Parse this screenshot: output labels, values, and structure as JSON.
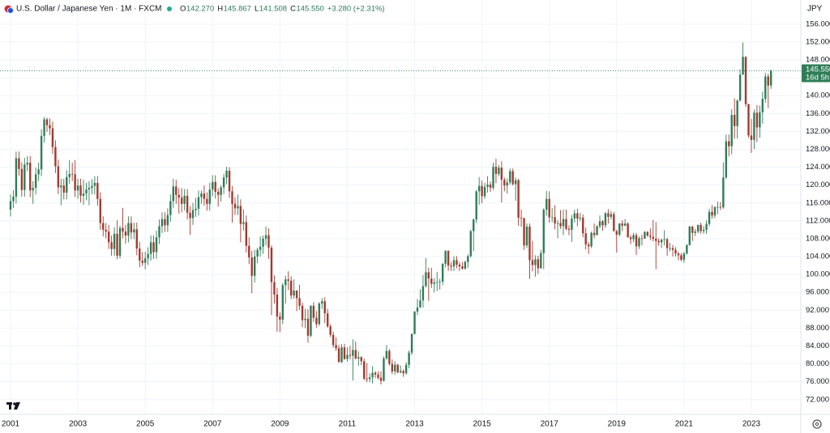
{
  "chart_data": {
    "type": "candlestick",
    "title": "U.S. Dollar / Japanese Yen · 1M · FXCM",
    "readout": [
      {
        "label": "O",
        "value": "142.270"
      },
      {
        "label": "H",
        "value": "145.867"
      },
      {
        "label": "L",
        "value": "141.508"
      },
      {
        "label": "C",
        "value": "145.550"
      }
    ],
    "change": "+3.280 (+2.31%)",
    "currency": "JPY",
    "last_price_label": "145.550",
    "countdown": "16d 5h",
    "up_color": "#2f7d57",
    "down_color": "#a3392e",
    "grid": true,
    "ylim": [
      68.7,
      161.4
    ],
    "yticks": [
      {
        "value": 72,
        "label": "72.000"
      },
      {
        "value": 76,
        "label": "76.000"
      },
      {
        "value": 80,
        "label": "80.000"
      },
      {
        "value": 84,
        "label": "84.000"
      },
      {
        "value": 88,
        "label": "88.000"
      },
      {
        "value": 92,
        "label": "92.000"
      },
      {
        "value": 96,
        "label": "96.000"
      },
      {
        "value": 100,
        "label": "100.000"
      },
      {
        "value": 104,
        "label": "104.000"
      },
      {
        "value": 108,
        "label": "108.000"
      },
      {
        "value": 112,
        "label": "112.000"
      },
      {
        "value": 116,
        "label": "116.000"
      },
      {
        "value": 120,
        "label": "120.000"
      },
      {
        "value": 124,
        "label": "124.000"
      },
      {
        "value": 128,
        "label": "128.000"
      },
      {
        "value": 132,
        "label": "132.000"
      },
      {
        "value": 136,
        "label": "136.000"
      },
      {
        "value": 140,
        "label": "140.000"
      },
      {
        "value": 144,
        "label": "144.000"
      },
      {
        "value": 148,
        "label": "148.000"
      },
      {
        "value": 152,
        "label": "152.000"
      },
      {
        "value": 156,
        "label": "156.000"
      }
    ],
    "categories": [
      "2001",
      null,
      null,
      null,
      null,
      null,
      null,
      null,
      null,
      null,
      null,
      null,
      null,
      null,
      null,
      null,
      null,
      null,
      null,
      null,
      null,
      null,
      null,
      null,
      "2003",
      null,
      null,
      null,
      null,
      null,
      null,
      null,
      null,
      null,
      null,
      null,
      null,
      null,
      null,
      null,
      null,
      null,
      null,
      null,
      null,
      null,
      null,
      null,
      "2005",
      null,
      null,
      null,
      null,
      null,
      null,
      null,
      null,
      null,
      null,
      null,
      null,
      null,
      null,
      null,
      null,
      null,
      null,
      null,
      null,
      null,
      null,
      null,
      "2007",
      null,
      null,
      null,
      null,
      null,
      null,
      null,
      null,
      null,
      null,
      null,
      null,
      null,
      null,
      null,
      null,
      null,
      null,
      null,
      null,
      null,
      null,
      null,
      "2009",
      null,
      null,
      null,
      null,
      null,
      null,
      null,
      null,
      null,
      null,
      null,
      null,
      null,
      null,
      null,
      null,
      null,
      null,
      null,
      null,
      null,
      null,
      null,
      "2011",
      null,
      null,
      null,
      null,
      null,
      null,
      null,
      null,
      null,
      null,
      null,
      null,
      null,
      null,
      null,
      null,
      null,
      null,
      null,
      null,
      null,
      null,
      null,
      "2013",
      null,
      null,
      null,
      null,
      null,
      null,
      null,
      null,
      null,
      null,
      null,
      null,
      null,
      null,
      null,
      null,
      null,
      null,
      null,
      null,
      null,
      null,
      null,
      "2015",
      null,
      null,
      null,
      null,
      null,
      null,
      null,
      null,
      null,
      null,
      null,
      null,
      null,
      null,
      null,
      null,
      null,
      null,
      null,
      null,
      null,
      null,
      null,
      "2017",
      null,
      null,
      null,
      null,
      null,
      null,
      null,
      null,
      null,
      null,
      null,
      null,
      null,
      null,
      null,
      null,
      null,
      null,
      null,
      null,
      null,
      null,
      null,
      "2019",
      null,
      null,
      null,
      null,
      null,
      null,
      null,
      null,
      null,
      null,
      null,
      null,
      null,
      null,
      null,
      null,
      null,
      null,
      null,
      null,
      null,
      null,
      null,
      "2021",
      null,
      null,
      null,
      null,
      null,
      null,
      null,
      null,
      null,
      null,
      null,
      null,
      null,
      null,
      null,
      null,
      null,
      null,
      null,
      null,
      null,
      null,
      null,
      "2023",
      null,
      null,
      null,
      null,
      null,
      null,
      null
    ],
    "open": [
      114.5,
      116.4,
      117.4,
      126.0,
      123.6,
      118.9,
      124.6,
      125.0,
      118.8,
      119.4,
      122.4,
      123.5,
      131.0,
      134.7,
      133.4,
      132.7,
      128.5,
      124.2,
      119.5,
      119.9,
      118.3,
      121.8,
      122.5,
      122.4,
      118.8,
      119.9,
      117.6,
      118.1,
      119.0,
      119.4,
      119.8,
      120.5,
      116.9,
      111.5,
      110.0,
      109.6,
      107.2,
      105.7,
      109.1,
      104.2,
      110.4,
      109.6,
      108.7,
      111.5,
      109.4,
      110.1,
      105.8,
      103.1,
      102.6,
      103.6,
      104.6,
      107.2,
      105.0,
      108.3,
      110.8,
      112.4,
      111.0,
      113.3,
      116.4,
      119.7,
      117.8,
      117.2,
      115.8,
      117.6,
      113.8,
      112.6,
      114.4,
      114.7,
      117.3,
      118.1,
      116.9,
      115.8,
      119.0,
      120.7,
      118.5,
      117.8,
      119.5,
      121.7,
      123.2,
      118.6,
      115.8,
      114.8,
      115.3,
      111.3,
      111.7,
      106.4,
      103.8,
      99.7,
      104.0,
      105.5,
      106.2,
      108.0,
      108.8,
      106.0,
      98.3,
      95.5,
      90.6,
      89.9,
      97.6,
      98.9,
      98.6,
      95.3,
      96.4,
      94.7,
      93.0,
      89.8,
      90.1,
      86.3,
      93.0,
      90.3,
      88.9,
      93.5,
      94.0,
      91.3,
      88.4,
      86.5,
      84.2,
      83.5,
      80.4,
      83.7,
      81.1,
      82.0,
      81.8,
      83.1,
      81.2,
      81.5,
      80.6,
      76.7,
      76.6,
      77.0,
      78.0,
      77.6,
      76.9,
      76.2,
      81.2,
      82.9,
      80.0,
      78.3,
      79.8,
      78.1,
      78.4,
      77.9,
      79.8,
      82.5,
      86.7,
      91.7,
      92.6,
      94.2,
      97.4,
      100.5,
      99.1,
      97.9,
      98.2,
      98.3,
      98.4,
      102.4,
      105.3,
      102.0,
      101.8,
      103.2,
      102.2,
      101.8,
      101.3,
      102.8,
      104.1,
      109.7,
      112.3,
      118.6,
      119.8,
      117.5,
      119.6,
      120.1,
      119.4,
      124.1,
      122.5,
      123.9,
      121.2,
      119.9,
      120.6,
      123.1,
      120.2,
      121.1,
      112.7,
      112.6,
      106.5,
      110.7,
      103.2,
      102.1,
      103.4,
      101.4,
      104.8,
      114.5,
      116.9,
      112.8,
      112.8,
      111.4,
      111.5,
      110.8,
      112.4,
      110.2,
      110.0,
      112.5,
      113.7,
      112.5,
      112.7,
      109.2,
      106.7,
      106.3,
      109.3,
      108.8,
      110.8,
      111.9,
      111.0,
      113.7,
      112.9,
      113.5,
      109.7,
      108.9,
      111.4,
      110.9,
      111.4,
      108.3,
      107.9,
      108.8,
      106.3,
      108.1,
      108.0,
      109.5,
      108.7,
      108.4,
      108.0,
      107.5,
      107.2,
      107.8,
      107.9,
      105.9,
      105.9,
      105.5,
      104.7,
      104.3,
      103.3,
      104.7,
      106.6,
      110.7,
      109.3,
      109.6,
      111.1,
      109.7,
      110.0,
      111.3,
      114.0,
      113.2,
      115.1,
      115.1,
      115.0,
      121.7,
      129.8,
      128.7,
      135.7,
      133.2,
      138.9,
      144.7,
      148.7,
      138.1,
      131.1,
      130.1,
      136.2,
      132.9,
      136.3,
      139.3,
      144.3,
      142.27
    ],
    "high": [
      117.9,
      118.9,
      127.5,
      127.5,
      125.1,
      126.1,
      126.5,
      126.5,
      120.9,
      123.9,
      125.0,
      132.5,
      135.2,
      135.0,
      134.9,
      134.2,
      130.0,
      125.7,
      121.4,
      121.4,
      123.3,
      125.6,
      125.0,
      125.6,
      121.4,
      121.4,
      121.2,
      120.5,
      120.9,
      121.3,
      122.0,
      122.0,
      118.4,
      113.0,
      111.5,
      111.1,
      108.7,
      110.6,
      112.1,
      110.9,
      114.9,
      111.1,
      113.0,
      113.0,
      111.6,
      111.6,
      107.3,
      105.0,
      105.1,
      106.1,
      108.7,
      108.7,
      109.8,
      112.3,
      113.9,
      113.9,
      114.8,
      117.9,
      121.4,
      121.2,
      119.3,
      119.3,
      119.1,
      119.1,
      115.3,
      116.0,
      117.1,
      118.8,
      118.8,
      119.9,
      118.4,
      120.5,
      122.2,
      122.2,
      119.3,
      120.0,
      122.5,
      124.1,
      124.0,
      119.8,
      117.3,
      117.9,
      116.8,
      114.6,
      113.2,
      108.3,
      105.3,
      105.5,
      106.0,
      108.5,
      108.7,
      110.7,
      110.3,
      106.5,
      99.8,
      97.0,
      91.5,
      98.1,
      99.7,
      100.7,
      99.6,
      98.9,
      96.5,
      97.7,
      93.7,
      92.3,
      92.2,
      93.1,
      93.8,
      91.8,
      93.8,
      94.7,
      94.9,
      92.3,
      88.9,
      87.2,
      85.9,
      84.2,
      84.4,
      84.5,
      83.7,
      84.0,
      85.5,
      85.0,
      82.8,
      81.7,
      81.2,
      80.2,
      77.9,
      79.5,
      78.4,
      78.3,
      78.3,
      81.7,
      84.2,
      83.3,
      81.0,
      80.6,
      80.0,
      79.6,
      78.8,
      80.4,
      83.0,
      86.8,
      91.8,
      94.5,
      96.7,
      99.9,
      103.7,
      101.5,
      101.5,
      99.2,
      100.6,
      99.0,
      102.5,
      105.4,
      105.4,
      102.8,
      104.1,
      104.1,
      102.8,
      102.8,
      103.1,
      104.5,
      110.0,
      112.5,
      118.9,
      121.8,
      121.0,
      120.5,
      122.0,
      120.8,
      125.0,
      125.9,
      124.5,
      125.3,
      121.7,
      121.5,
      123.7,
      123.7,
      121.7,
      121.4,
      114.5,
      112.7,
      111.4,
      111.4,
      107.5,
      104.3,
      104.2,
      105.5,
      114.8,
      118.7,
      118.6,
      114.9,
      115.5,
      112.2,
      114.4,
      114.5,
      114.5,
      111.0,
      113.3,
      114.5,
      114.7,
      113.8,
      113.4,
      110.5,
      107.3,
      109.6,
      111.4,
      111.0,
      113.2,
      112.2,
      114.0,
      114.6,
      114.2,
      114.0,
      110.0,
      111.5,
      112.1,
      112.4,
      111.7,
      108.8,
      109.3,
      109.3,
      108.5,
      108.9,
      109.7,
      109.7,
      110.3,
      112.2,
      111.7,
      108.1,
      108.0,
      109.9,
      108.2,
      107.1,
      106.6,
      106.1,
      105.0,
      104.8,
      105.0,
      106.7,
      110.9,
      110.9,
      110.2,
      111.1,
      111.6,
      110.8,
      112.1,
      114.7,
      115.5,
      115.2,
      116.3,
      116.2,
      125.1,
      131.3,
      131.3,
      137.0,
      139.4,
      139.1,
      145.9,
      151.9,
      148.8,
      138.2,
      134.8,
      136.9,
      137.9,
      137.8,
      140.9,
      145.1,
      144.9,
      145.867
    ],
    "low": [
      113.0,
      114.9,
      115.9,
      122.1,
      117.4,
      117.4,
      123.1,
      117.3,
      115.8,
      117.9,
      120.9,
      122.0,
      129.5,
      131.9,
      131.2,
      127.0,
      122.7,
      118.0,
      115.5,
      116.8,
      116.8,
      120.3,
      120.9,
      117.3,
      116.9,
      116.1,
      115.6,
      116.6,
      115.5,
      117.9,
      117.9,
      115.4,
      110.0,
      108.5,
      108.1,
      105.7,
      104.2,
      104.2,
      103.4,
      103.6,
      108.1,
      106.9,
      107.2,
      107.9,
      107.9,
      104.3,
      101.6,
      101.9,
      101.1,
      102.1,
      103.1,
      103.5,
      103.5,
      106.8,
      109.3,
      109.5,
      109.5,
      111.8,
      114.9,
      115.8,
      113.6,
      113.9,
      114.3,
      112.3,
      108.9,
      111.1,
      112.9,
      113.2,
      115.8,
      115.4,
      114.3,
      114.3,
      117.5,
      117.0,
      115.2,
      116.3,
      118.0,
      120.2,
      117.1,
      111.6,
      113.3,
      113.3,
      107.2,
      109.8,
      104.9,
      102.3,
      95.8,
      98.2,
      102.5,
      104.0,
      104.6,
      106.5,
      103.5,
      90.9,
      93.5,
      87.2,
      87.1,
      88.9,
      93.5,
      96.5,
      94.5,
      94.6,
      91.8,
      92.1,
      88.2,
      88.0,
      84.8,
      86.0,
      89.4,
      88.1,
      88.5,
      92.3,
      89.1,
      88.1,
      86.0,
      83.6,
      82.9,
      80.3,
      80.2,
      80.9,
      80.5,
      81.0,
      76.3,
      81.0,
      79.6,
      79.7,
      76.3,
      75.9,
      75.9,
      75.6,
      76.8,
      76.5,
      75.4,
      76.1,
      80.9,
      79.6,
      77.7,
      77.6,
      77.9,
      77.9,
      77.1,
      77.6,
      79.0,
      82.0,
      86.6,
      90.9,
      92.6,
      92.6,
      97.1,
      94.1,
      97.0,
      96.0,
      96.3,
      96.6,
      97.6,
      101.6,
      100.8,
      100.8,
      100.8,
      101.4,
      100.8,
      101.1,
      101.1,
      101.5,
      103.8,
      105.2,
      111.5,
      115.6,
      115.9,
      116.9,
      118.3,
      118.5,
      118.9,
      120.4,
      122.0,
      116.1,
      118.6,
      118.1,
      120.1,
      119.9,
      116.5,
      110.9,
      110.7,
      105.5,
      105.9,
      99.0,
      100.7,
      99.5,
      100.1,
      101.3,
      101.2,
      113.1,
      111.6,
      111.7,
      110.1,
      108.1,
      110.2,
      108.8,
      109.9,
      108.8,
      107.3,
      111.6,
      110.8,
      111.9,
      108.3,
      105.6,
      104.6,
      105.9,
      108.1,
      108.8,
      110.3,
      109.8,
      110.4,
      111.4,
      112.3,
      109.6,
      104.9,
      108.5,
      109.7,
      110.8,
      108.3,
      106.8,
      107.2,
      104.4,
      105.7,
      106.5,
      108.2,
      108.4,
      107.7,
      107.4,
      101.2,
      106.4,
      105.9,
      106.5,
      104.2,
      105.2,
      104.0,
      104.0,
      103.2,
      102.9,
      102.6,
      104.4,
      106.4,
      107.5,
      108.6,
      109.2,
      109.1,
      109.1,
      109.1,
      110.8,
      112.5,
      112.6,
      113.5,
      114.4,
      114.7,
      121.3,
      126.4,
      126.9,
      130.4,
      130.4,
      138.7,
      144.7,
      137.5,
      130.6,
      127.2,
      128.1,
      129.6,
      130.6,
      133.7,
      138.4,
      137.2,
      141.508
    ],
    "close": [
      116.4,
      117.4,
      126.0,
      123.6,
      118.9,
      124.6,
      125.0,
      118.8,
      119.4,
      122.4,
      123.5,
      131.0,
      134.7,
      133.4,
      132.7,
      128.5,
      124.2,
      119.5,
      119.9,
      118.3,
      121.8,
      122.5,
      122.4,
      118.8,
      119.9,
      117.6,
      118.1,
      119.0,
      119.4,
      119.8,
      120.5,
      116.9,
      111.5,
      110.0,
      109.6,
      107.2,
      105.7,
      109.1,
      104.2,
      110.4,
      109.6,
      108.7,
      111.5,
      109.4,
      110.1,
      105.8,
      103.1,
      102.6,
      103.6,
      104.6,
      107.2,
      105.0,
      108.3,
      110.8,
      112.4,
      111.0,
      113.3,
      116.4,
      119.7,
      117.8,
      117.2,
      115.8,
      117.6,
      113.8,
      112.6,
      114.4,
      114.7,
      117.3,
      118.1,
      116.9,
      115.8,
      119.0,
      120.7,
      118.5,
      117.8,
      119.5,
      121.7,
      123.2,
      118.6,
      115.8,
      114.8,
      115.3,
      111.3,
      111.7,
      106.4,
      103.8,
      99.7,
      104.0,
      105.5,
      106.2,
      108.0,
      108.8,
      106.0,
      98.3,
      95.5,
      90.6,
      89.9,
      97.6,
      98.9,
      98.6,
      95.3,
      96.4,
      94.7,
      93.0,
      89.8,
      90.1,
      86.3,
      93.0,
      90.3,
      88.9,
      93.5,
      94.0,
      91.3,
      88.4,
      86.5,
      84.2,
      83.5,
      80.4,
      83.7,
      81.1,
      82.0,
      81.8,
      83.1,
      81.2,
      81.5,
      80.6,
      76.7,
      76.6,
      77.0,
      78.0,
      77.6,
      76.9,
      76.2,
      81.2,
      82.9,
      80.0,
      78.3,
      79.8,
      78.1,
      78.4,
      77.9,
      79.8,
      82.5,
      86.7,
      91.7,
      92.6,
      94.2,
      97.4,
      100.5,
      99.1,
      97.9,
      98.2,
      98.3,
      98.4,
      102.4,
      105.3,
      102.0,
      101.8,
      103.2,
      102.2,
      101.8,
      101.3,
      102.8,
      104.1,
      109.7,
      112.3,
      118.6,
      119.8,
      117.5,
      119.6,
      120.1,
      119.4,
      124.1,
      122.5,
      123.9,
      121.2,
      119.9,
      120.6,
      123.1,
      120.2,
      121.1,
      112.7,
      112.6,
      106.5,
      110.7,
      103.2,
      102.1,
      103.4,
      101.4,
      104.8,
      114.5,
      116.9,
      112.8,
      112.8,
      111.4,
      111.5,
      110.8,
      112.4,
      110.2,
      110.0,
      112.5,
      113.7,
      112.5,
      112.7,
      109.2,
      106.7,
      106.3,
      109.3,
      108.8,
      110.8,
      111.9,
      111.0,
      113.7,
      112.9,
      113.5,
      109.7,
      108.9,
      111.4,
      110.9,
      111.4,
      108.3,
      107.9,
      108.8,
      106.3,
      108.1,
      108.0,
      109.5,
      108.7,
      108.4,
      108.0,
      107.5,
      107.2,
      107.8,
      107.9,
      105.9,
      105.9,
      105.5,
      104.7,
      104.3,
      103.3,
      104.7,
      106.6,
      110.7,
      109.3,
      109.6,
      111.1,
      109.7,
      110.0,
      111.3,
      114.0,
      113.2,
      115.1,
      115.1,
      115.0,
      121.7,
      129.8,
      128.7,
      135.7,
      133.2,
      138.9,
      144.7,
      148.7,
      138.1,
      131.1,
      130.1,
      136.2,
      132.9,
      136.3,
      139.3,
      144.3,
      142.27,
      145.55
    ]
  }
}
